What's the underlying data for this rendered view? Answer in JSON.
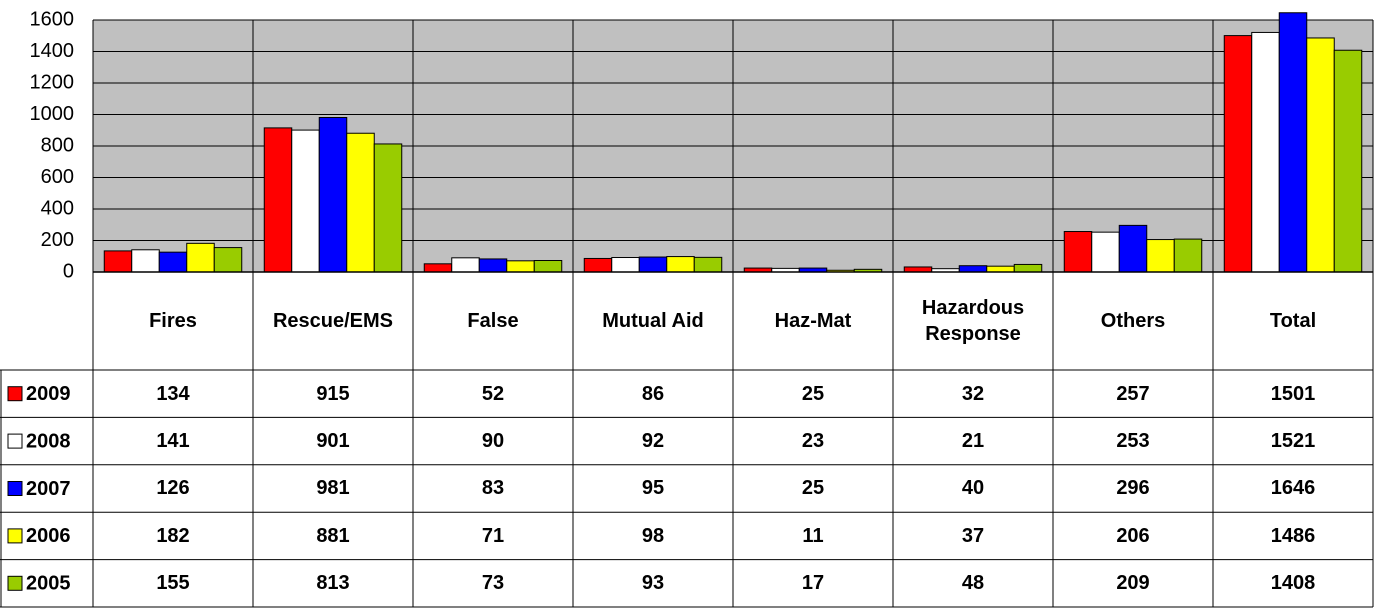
{
  "chart_data": {
    "type": "bar",
    "categories": [
      "Fires",
      "Rescue/EMS",
      "False",
      "Mutual Aid",
      "Haz-Mat",
      "Hazardous Response",
      "Others",
      "Total"
    ],
    "series": [
      {
        "name": "2009",
        "color": "#ff0000",
        "values": [
          134,
          915,
          52,
          86,
          25,
          32,
          257,
          1501
        ]
      },
      {
        "name": "2008",
        "color": "#ffffff",
        "values": [
          141,
          901,
          90,
          92,
          23,
          21,
          253,
          1521
        ]
      },
      {
        "name": "2007",
        "color": "#0000ff",
        "values": [
          126,
          981,
          83,
          95,
          25,
          40,
          296,
          1646
        ]
      },
      {
        "name": "2006",
        "color": "#ffff00",
        "values": [
          182,
          881,
          71,
          98,
          11,
          37,
          206,
          1486
        ]
      },
      {
        "name": "2005",
        "color": "#99cc00",
        "values": [
          155,
          813,
          73,
          93,
          17,
          48,
          209,
          1408
        ]
      }
    ],
    "ylim": [
      0,
      1600
    ],
    "yticks": [
      0,
      200,
      400,
      600,
      800,
      1000,
      1200,
      1400,
      1600
    ],
    "grid": true,
    "plot_background": "#c0c0c0"
  }
}
